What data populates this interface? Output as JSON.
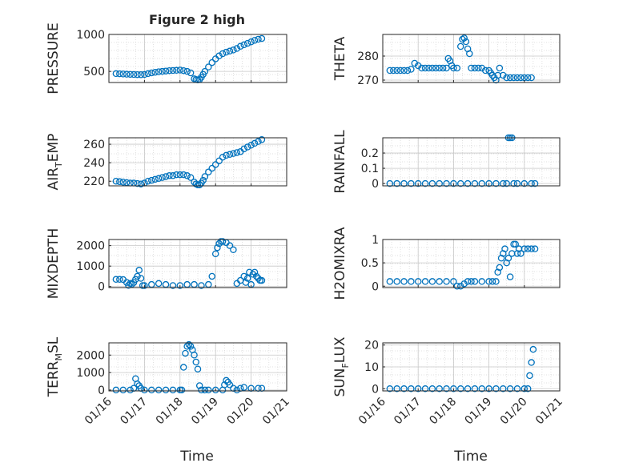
{
  "figure": {
    "title": "Figure 2 high",
    "xlabel_left": "Time",
    "xlabel_right": "Time"
  },
  "colors": {
    "marker": "#0072BD",
    "grid": "#d9d9d9",
    "axis": "#262626"
  },
  "x_ticks": [
    "01/16",
    "01/17",
    "01/18",
    "01/19",
    "01/20",
    "01/21"
  ],
  "x_tick_values": [
    16,
    17,
    18,
    19,
    20,
    21
  ],
  "chart_data": [
    {
      "type": "scatter",
      "ylabel": "PRESSURE",
      "ylim": [
        350,
        1000
      ],
      "yticks": [
        500,
        1000
      ],
      "xlim": [
        16,
        21
      ],
      "x": [
        16.2,
        16.3,
        16.4,
        16.5,
        16.6,
        16.7,
        16.8,
        16.9,
        17.0,
        17.1,
        17.2,
        17.3,
        17.4,
        17.5,
        17.6,
        17.7,
        17.8,
        17.9,
        18.0,
        18.1,
        18.2,
        18.3,
        18.4,
        18.45,
        18.5,
        18.55,
        18.6,
        18.65,
        18.7,
        18.8,
        18.9,
        19.0,
        19.1,
        19.2,
        19.3,
        19.4,
        19.5,
        19.6,
        19.7,
        19.8,
        19.9,
        20.0,
        20.1,
        20.2,
        20.3
      ],
      "values": [
        470,
        468,
        465,
        462,
        460,
        458,
        456,
        455,
        458,
        470,
        480,
        488,
        495,
        500,
        505,
        510,
        512,
        515,
        518,
        510,
        500,
        480,
        400,
        390,
        385,
        390,
        420,
        460,
        500,
        560,
        620,
        670,
        710,
        740,
        760,
        775,
        790,
        810,
        840,
        860,
        880,
        900,
        920,
        935,
        945
      ]
    },
    {
      "type": "scatter",
      "ylabel": "THETA",
      "ylim": [
        269,
        289
      ],
      "yticks": [
        270,
        280
      ],
      "xlim": [
        16,
        21
      ],
      "x": [
        16.2,
        16.3,
        16.4,
        16.5,
        16.6,
        16.7,
        16.8,
        16.9,
        17.0,
        17.1,
        17.2,
        17.3,
        17.4,
        17.5,
        17.6,
        17.7,
        17.8,
        17.85,
        17.9,
        17.95,
        18.0,
        18.1,
        18.2,
        18.25,
        18.3,
        18.35,
        18.4,
        18.45,
        18.5,
        18.6,
        18.7,
        18.8,
        18.9,
        19.0,
        19.05,
        19.1,
        19.15,
        19.2,
        19.25,
        19.3,
        19.4,
        19.5,
        19.6,
        19.7,
        19.8,
        19.9,
        20.0,
        20.1,
        20.2
      ],
      "values": [
        274,
        274,
        274,
        274,
        274,
        274,
        274.5,
        277,
        276,
        275,
        275,
        275,
        275,
        275,
        275,
        275,
        275,
        279,
        278,
        276,
        275,
        275,
        284,
        287,
        287.5,
        286,
        283,
        281,
        275,
        275,
        275,
        275,
        274,
        274,
        273,
        272,
        271,
        270,
        272,
        275,
        272,
        271,
        271,
        271,
        271,
        271,
        271,
        271,
        271
      ]
    },
    {
      "type": "scatter",
      "ylabel": "AIR_TEMP",
      "ylim": [
        215,
        267
      ],
      "yticks": [
        220,
        240,
        260
      ],
      "xlim": [
        16,
        21
      ],
      "x": [
        16.2,
        16.3,
        16.4,
        16.5,
        16.6,
        16.7,
        16.8,
        16.9,
        17.0,
        17.1,
        17.2,
        17.3,
        17.4,
        17.5,
        17.6,
        17.7,
        17.8,
        17.9,
        18.0,
        18.1,
        18.2,
        18.3,
        18.4,
        18.45,
        18.5,
        18.55,
        18.6,
        18.65,
        18.7,
        18.8,
        18.9,
        19.0,
        19.1,
        19.2,
        19.3,
        19.4,
        19.5,
        19.6,
        19.7,
        19.8,
        19.9,
        20.0,
        20.1,
        20.2,
        20.3
      ],
      "values": [
        220,
        219.5,
        219,
        218.5,
        218,
        218,
        217.5,
        217,
        218,
        220,
        221,
        222,
        223,
        224,
        225,
        226,
        226,
        227,
        227,
        227,
        226,
        224,
        219,
        217,
        216,
        216,
        218,
        221,
        225,
        230,
        234,
        238,
        242,
        246,
        248,
        249,
        250,
        251,
        252,
        255,
        257,
        259,
        261,
        263,
        265
      ]
    },
    {
      "type": "scatter",
      "ylabel": "RAINFALL",
      "ylim": [
        -0.015,
        0.3
      ],
      "yticks": [
        0,
        0.1,
        0.2
      ],
      "xlim": [
        16,
        21
      ],
      "x": [
        16.2,
        16.4,
        16.6,
        16.8,
        17.0,
        17.2,
        17.4,
        17.6,
        17.8,
        18.0,
        18.2,
        18.4,
        18.6,
        18.8,
        19.0,
        19.2,
        19.4,
        19.5,
        19.55,
        19.6,
        19.65,
        19.7,
        19.8,
        20.0,
        20.2,
        20.3
      ],
      "values": [
        0,
        0,
        0,
        0,
        0,
        0,
        0,
        0,
        0,
        0,
        0,
        0,
        0,
        0,
        0,
        0,
        0,
        0,
        0.3,
        0.3,
        0.3,
        0,
        0,
        0,
        0,
        0
      ]
    },
    {
      "type": "scatter",
      "ylabel": "MIXDEPTH",
      "ylim": [
        -50,
        2300
      ],
      "yticks": [
        0,
        1000,
        2000
      ],
      "xlim": [
        16,
        21
      ],
      "x": [
        16.2,
        16.3,
        16.4,
        16.5,
        16.55,
        16.6,
        16.65,
        16.7,
        16.75,
        16.8,
        16.85,
        16.9,
        16.95,
        17.0,
        17.2,
        17.4,
        17.6,
        17.8,
        18.0,
        18.2,
        18.4,
        18.6,
        18.8,
        18.9,
        19.0,
        19.05,
        19.1,
        19.15,
        19.2,
        19.3,
        19.4,
        19.5,
        19.6,
        19.7,
        19.8,
        19.85,
        19.9,
        19.95,
        20.0,
        20.05,
        20.1,
        20.15,
        20.2,
        20.25,
        20.3
      ],
      "values": [
        350,
        350,
        340,
        200,
        60,
        150,
        120,
        200,
        350,
        500,
        800,
        400,
        50,
        50,
        100,
        150,
        100,
        50,
        50,
        100,
        100,
        50,
        100,
        500,
        1600,
        1900,
        2100,
        2200,
        2200,
        2150,
        2000,
        1800,
        150,
        300,
        500,
        200,
        400,
        700,
        100,
        600,
        700,
        500,
        400,
        300,
        300
      ]
    },
    {
      "type": "scatter",
      "ylabel": "H2OMIXRA",
      "ylim": [
        -0.03,
        1.0
      ],
      "yticks": [
        0,
        0.5,
        1
      ],
      "xlim": [
        16,
        21
      ],
      "x": [
        16.2,
        16.4,
        16.6,
        16.8,
        17.0,
        17.2,
        17.4,
        17.6,
        17.8,
        18.0,
        18.1,
        18.2,
        18.3,
        18.4,
        18.5,
        18.6,
        18.8,
        19.0,
        19.1,
        19.2,
        19.25,
        19.3,
        19.35,
        19.4,
        19.45,
        19.5,
        19.55,
        19.6,
        19.65,
        19.7,
        19.75,
        19.8,
        19.85,
        19.9,
        20.0,
        20.1,
        20.2,
        20.3
      ],
      "values": [
        0.1,
        0.1,
        0.1,
        0.1,
        0.1,
        0.1,
        0.1,
        0.1,
        0.1,
        0.1,
        0,
        0,
        0.05,
        0.1,
        0.1,
        0.1,
        0.1,
        0.1,
        0.1,
        0.1,
        0.3,
        0.4,
        0.6,
        0.7,
        0.8,
        0.5,
        0.6,
        0.2,
        0.7,
        0.9,
        0.9,
        0.7,
        0.8,
        0.7,
        0.8,
        0.8,
        0.8,
        0.8
      ]
    },
    {
      "type": "scatter",
      "ylabel": "TERR_MSL",
      "ylim": [
        -50,
        2700
      ],
      "yticks": [
        0,
        1000,
        2000
      ],
      "xlim": [
        16,
        21
      ],
      "x": [
        16.2,
        16.4,
        16.6,
        16.7,
        16.75,
        16.8,
        16.85,
        16.9,
        17.0,
        17.2,
        17.4,
        17.6,
        17.8,
        18.0,
        18.05,
        18.1,
        18.15,
        18.2,
        18.25,
        18.3,
        18.35,
        18.4,
        18.45,
        18.5,
        18.55,
        18.6,
        18.7,
        18.8,
        19.0,
        19.2,
        19.25,
        19.3,
        19.35,
        19.4,
        19.5,
        19.6,
        19.7,
        19.8,
        20.0,
        20.2,
        20.3
      ],
      "values": [
        0,
        0,
        0,
        100,
        650,
        350,
        250,
        100,
        0,
        0,
        0,
        0,
        0,
        0,
        0,
        1300,
        2100,
        2500,
        2600,
        2500,
        2300,
        2000,
        1600,
        1200,
        250,
        0,
        0,
        0,
        0,
        0,
        300,
        550,
        450,
        300,
        100,
        0,
        100,
        150,
        100,
        100,
        100
      ]
    },
    {
      "type": "scatter",
      "ylabel": "SUN_FLUX",
      "ylim": [
        -1,
        21
      ],
      "yticks": [
        0,
        10,
        20
      ],
      "xlim": [
        16,
        21
      ],
      "x": [
        16.2,
        16.4,
        16.6,
        16.8,
        17.0,
        17.2,
        17.4,
        17.6,
        17.8,
        18.0,
        18.2,
        18.4,
        18.6,
        18.8,
        19.0,
        19.2,
        19.4,
        19.6,
        19.8,
        20.0,
        20.1,
        20.15,
        20.2,
        20.25
      ],
      "values": [
        0,
        0,
        0,
        0,
        0,
        0,
        0,
        0,
        0,
        0,
        0,
        0,
        0,
        0,
        0,
        0,
        0,
        0,
        0,
        0,
        0,
        6,
        12,
        18
      ]
    }
  ]
}
